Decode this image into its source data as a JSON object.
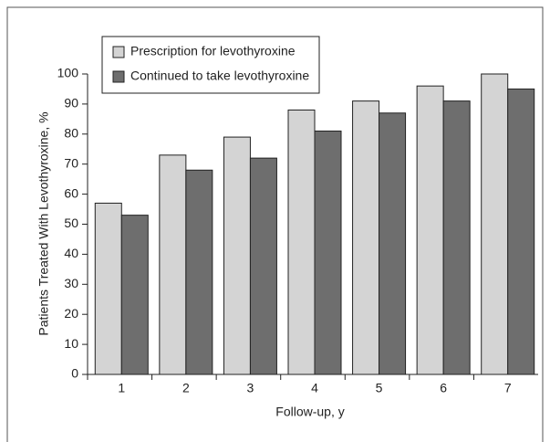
{
  "chart_data": {
    "type": "bar",
    "categories": [
      "1",
      "2",
      "3",
      "4",
      "5",
      "6",
      "7"
    ],
    "series": [
      {
        "name": "Prescription for levothyroxine",
        "color": "#d4d4d4",
        "values": [
          57,
          73,
          79,
          88,
          91,
          96,
          100
        ]
      },
      {
        "name": "Continued to take levothyroxine",
        "color": "#6e6e6e",
        "values": [
          53,
          68,
          72,
          81,
          87,
          91,
          95
        ]
      }
    ],
    "ylim": [
      0,
      100
    ],
    "yticks": [
      0,
      10,
      20,
      30,
      40,
      50,
      60,
      70,
      80,
      90,
      100
    ],
    "xlabel": "Follow-up, y",
    "ylabel": "Patients Treated With Levothyroxine, %",
    "legend": "top-left"
  }
}
